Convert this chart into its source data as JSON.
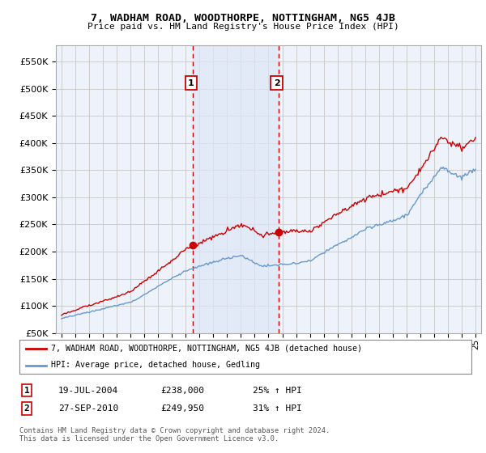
{
  "title": "7, WADHAM ROAD, WOODTHORPE, NOTTINGHAM, NG5 4JB",
  "subtitle": "Price paid vs. HM Land Registry's House Price Index (HPI)",
  "legend_line1": "7, WADHAM ROAD, WOODTHORPE, NOTTINGHAM, NG5 4JB (detached house)",
  "legend_line2": "HPI: Average price, detached house, Gedling",
  "sale1_date": "19-JUL-2004",
  "sale1_price": 238000,
  "sale1_label": "25% ↑ HPI",
  "sale2_date": "27-SEP-2010",
  "sale2_price": 249950,
  "sale2_label": "31% ↑ HPI",
  "footnote": "Contains HM Land Registry data © Crown copyright and database right 2024.\nThis data is licensed under the Open Government Licence v3.0.",
  "red_color": "#cc0000",
  "blue_color": "#6699cc",
  "grid_color": "#cccccc",
  "plot_bg_color": "#eef2fb",
  "ylim_min": 50000,
  "ylim_max": 580000,
  "yticks": [
    50000,
    100000,
    150000,
    200000,
    250000,
    300000,
    350000,
    400000,
    450000,
    500000,
    550000
  ],
  "sale1_x": 2004.54,
  "sale2_x": 2010.74,
  "xlim_min": 1994.6,
  "xlim_max": 2025.4
}
